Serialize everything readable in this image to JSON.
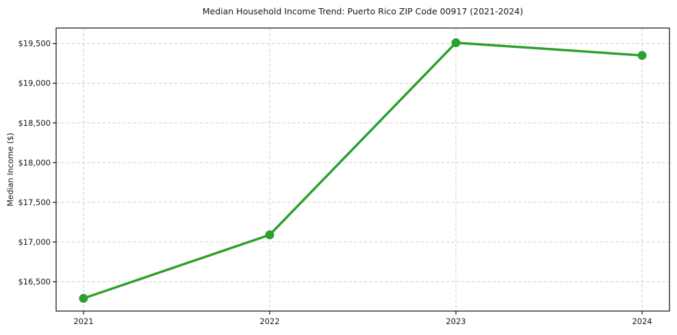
{
  "chart_data": {
    "type": "line",
    "title": "Median Household Income Trend: Puerto Rico ZIP Code 00917 (2021-2024)",
    "xlabel": "",
    "ylabel": "Median Income ($)",
    "x": [
      2021,
      2022,
      2023,
      2024
    ],
    "xtick_labels": [
      "2021",
      "2022",
      "2023",
      "2024"
    ],
    "series": [
      {
        "name": "Median Household Income",
        "values": [
          16290,
          17090,
          19510,
          19350
        ]
      }
    ],
    "yticks": [
      16500,
      17000,
      17500,
      18000,
      18500,
      19000,
      19500
    ],
    "ytick_labels": [
      "$16,500",
      "$17,000",
      "$17,500",
      "$18,000",
      "$18,500",
      "$19,000",
      "$19,500"
    ],
    "ylim": [
      16130,
      19695
    ],
    "grid": true,
    "legend": "none",
    "line_color": "#2ca02c",
    "marker": "circle",
    "grid_color": "#cccccc",
    "spine_color": "#0a0a0a",
    "background_color": "#ffffff",
    "text_color": "#151515"
  }
}
